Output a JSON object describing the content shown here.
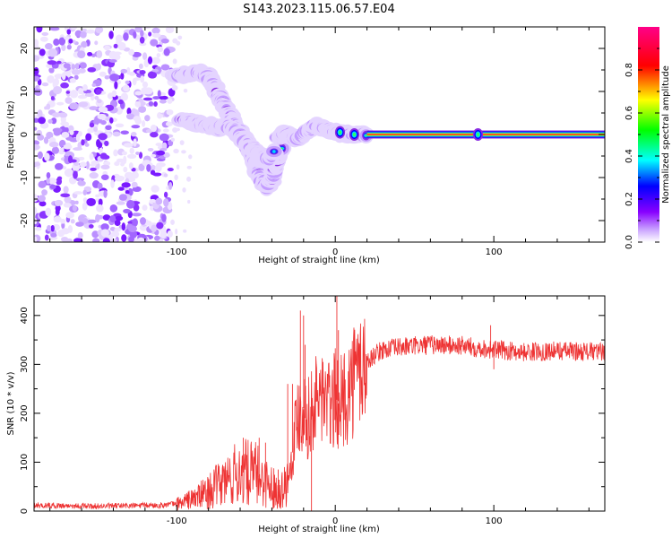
{
  "title": "S143.2023.115.06.57.E04",
  "chart_data": [
    {
      "type": "heatmap",
      "name": "spectrogram",
      "xlabel": "Height of straight line (km)",
      "ylabel": "Frequency (Hz)",
      "xlim": [
        -190,
        170
      ],
      "ylim": [
        -25,
        25
      ],
      "xticks": [
        -100,
        0,
        100
      ],
      "xtick_labels": [
        "-100",
        "0",
        "100"
      ],
      "yticks": [
        -20,
        -10,
        0,
        10,
        20
      ],
      "ytick_labels": [
        "-20",
        "-10",
        "0",
        "10",
        "20"
      ],
      "noise_region": {
        "x": [
          -190,
          -103
        ],
        "y": [
          -25,
          25
        ]
      },
      "tracks": [
        {
          "x": [
            -101,
            -95,
            -90,
            -85,
            -80,
            -76,
            -72,
            -68,
            -64,
            -60,
            -56,
            -52,
            -49,
            -46,
            -43,
            -40,
            -37,
            -34
          ],
          "y": [
            13.5,
            13.8,
            14.2,
            14.5,
            13.5,
            11,
            8,
            5.5,
            3,
            0,
            -2.5,
            -5.5,
            -8,
            -11,
            -12.5,
            -10,
            -6,
            -3
          ]
        },
        {
          "x": [
            -98,
            -93,
            -88,
            -83,
            -78,
            -74,
            -70,
            -66,
            -62,
            -58,
            -54,
            -50,
            -47,
            -44,
            -41,
            -38
          ],
          "y": [
            3.5,
            3,
            2.5,
            2.5,
            2,
            1.5,
            2,
            1.5,
            0.5,
            -1,
            -3,
            -4,
            -5,
            -6,
            -5.5,
            -4
          ]
        },
        {
          "x": [
            -36,
            -32,
            -28,
            -24,
            -20,
            -16,
            -12,
            -8,
            -4,
            0,
            4,
            8,
            12,
            16,
            20
          ],
          "y": [
            -1,
            0,
            -0.5,
            -1,
            0,
            1,
            2,
            1.5,
            1,
            0.5,
            0.3,
            0.2,
            0,
            0,
            0
          ]
        },
        {
          "x": [
            20,
            170
          ],
          "y": [
            0,
            0
          ]
        }
      ],
      "colorbar": {
        "label": "Normalized spectral amplitude",
        "range": [
          0,
          1
        ],
        "ticks": [
          0.0,
          0.2,
          0.4,
          0.6,
          0.8
        ],
        "tick_labels": [
          "0.0",
          "0.2",
          "0.4",
          "0.6",
          "0.8"
        ],
        "colors": [
          "#ffffff",
          "#8800ff",
          "#0000ff",
          "#00ffff",
          "#00ff00",
          "#ffff00",
          "#ff0000",
          "#ff0088"
        ]
      }
    },
    {
      "type": "line",
      "name": "snr",
      "xlabel": "Height of straight line (km)",
      "ylabel": "SNR (10 * v/v)",
      "xlim": [
        -190,
        170
      ],
      "ylim": [
        0,
        440
      ],
      "xticks": [
        -100,
        0,
        100
      ],
      "xtick_labels": [
        "-100",
        "0",
        "100"
      ],
      "yticks": [
        0,
        100,
        200,
        300,
        400
      ],
      "ytick_labels": [
        "0",
        "100",
        "200",
        "300",
        "400"
      ],
      "color": "#ee3333",
      "trend": {
        "x": [
          -190,
          -150,
          -110,
          -100,
          -90,
          -80,
          -70,
          -60,
          -50,
          -40,
          -35,
          -30,
          -27,
          -24,
          -20,
          -17,
          -13,
          -8,
          -3,
          0,
          4,
          10,
          15,
          20,
          25,
          30,
          40,
          60,
          80,
          100,
          120,
          140,
          170
        ],
        "y": [
          12,
          10,
          12,
          15,
          25,
          40,
          60,
          80,
          75,
          50,
          40,
          60,
          120,
          200,
          210,
          190,
          220,
          240,
          210,
          230,
          220,
          260,
          290,
          305,
          320,
          330,
          335,
          340,
          338,
          330,
          325,
          328,
          325
        ]
      },
      "spikes": [
        {
          "x": -58,
          "y": 150
        },
        {
          "x": -48,
          "y": 150
        },
        {
          "x": -44,
          "y": 140
        },
        {
          "x": -36,
          "y": 85
        },
        {
          "x": -30,
          "y": 260
        },
        {
          "x": -27,
          "y": 260
        },
        {
          "x": -22,
          "y": 410
        },
        {
          "x": -20,
          "y": 400
        },
        {
          "x": -19,
          "y": 340
        },
        {
          "x": -15,
          "y": 0
        },
        {
          "x": -12,
          "y": 300
        },
        {
          "x": -8,
          "y": 300
        },
        {
          "x": 1,
          "y": 440
        },
        {
          "x": 2,
          "y": 370
        },
        {
          "x": 98,
          "y": 380
        },
        {
          "x": 100,
          "y": 290
        }
      ]
    }
  ]
}
